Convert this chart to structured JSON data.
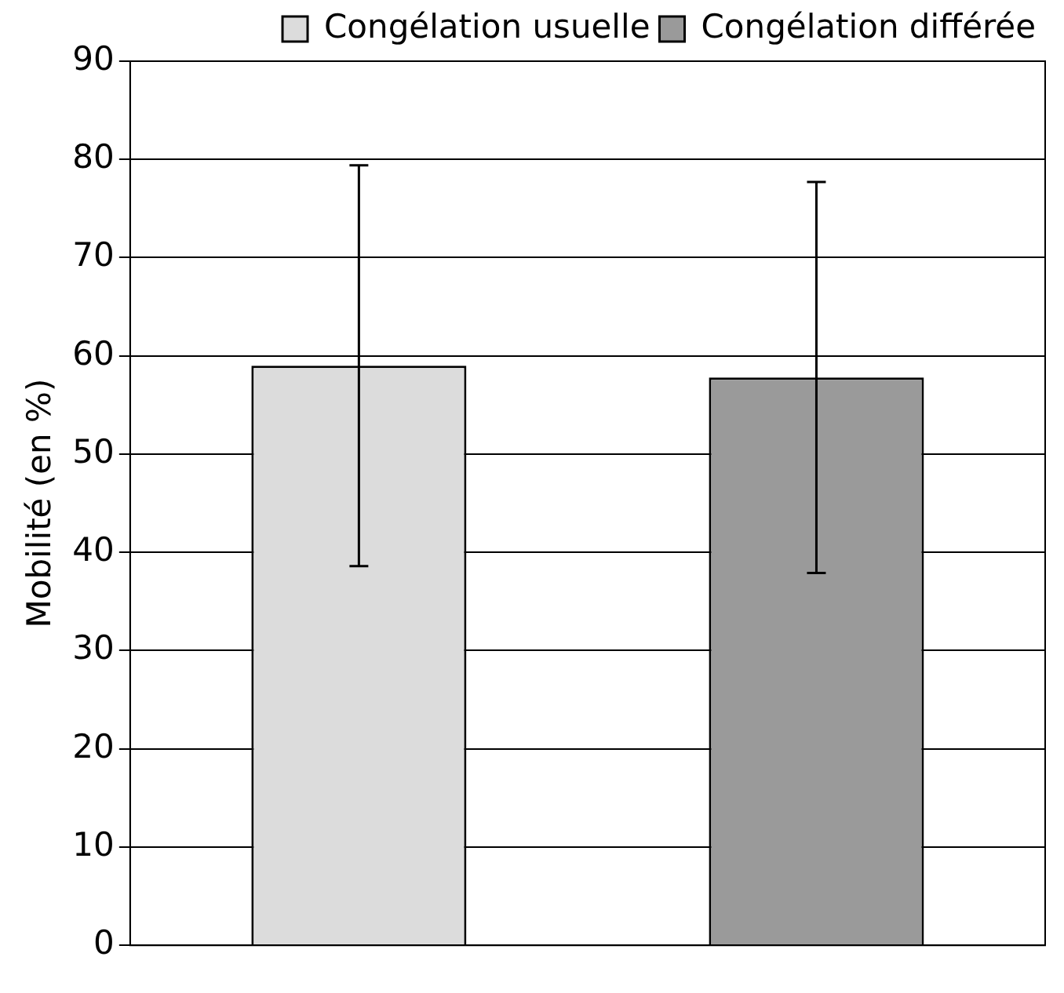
{
  "chart_data": {
    "type": "bar",
    "ylabel": "Mobilité (en %)",
    "categories": [
      null
    ],
    "series": [
      {
        "name": "Congélation usuelle",
        "color": "#dcdcdc",
        "values": [
          59
        ],
        "errors": [
          20.4
        ]
      },
      {
        "name": "Congélation différée",
        "color": "#9a9a9a",
        "values": [
          57.8
        ],
        "errors": [
          19.9
        ]
      }
    ],
    "ylim": [
      0,
      90
    ],
    "yticks": [
      0,
      10,
      20,
      30,
      40,
      50,
      60,
      70,
      80,
      90
    ],
    "grid": "y",
    "legend": "top right"
  }
}
